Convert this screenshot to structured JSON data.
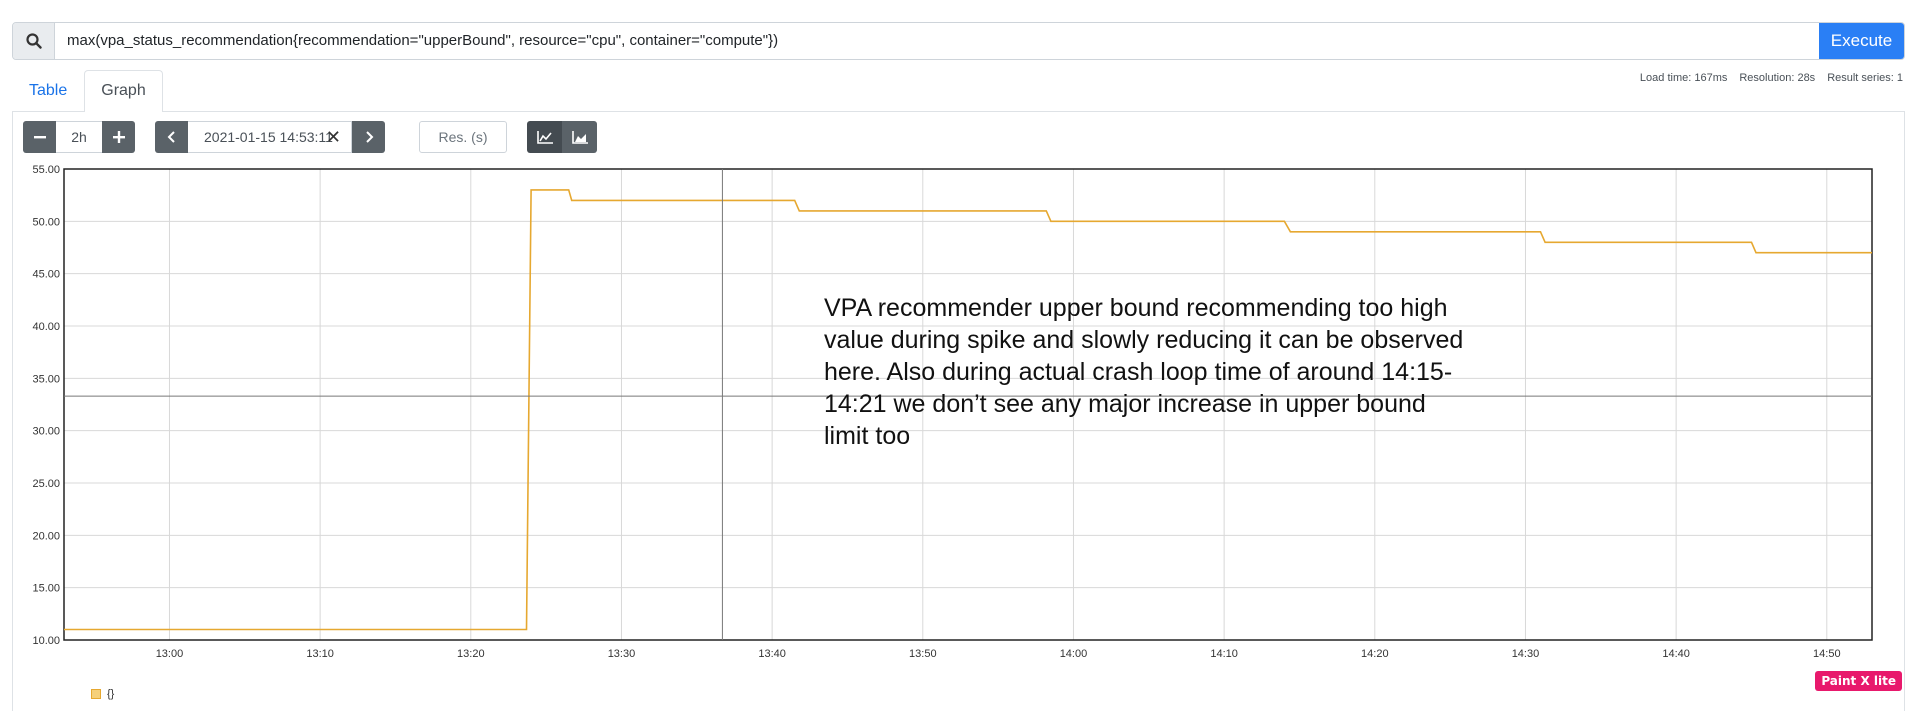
{
  "query": {
    "expression": "max(vpa_status_recommendation{recommendation=\"upperBound\", resource=\"cpu\", container=\"compute\"})",
    "execute_label": "Execute",
    "search_icon": "search-icon"
  },
  "tabs": [
    {
      "label": "Table",
      "active": false
    },
    {
      "label": "Graph",
      "active": true
    }
  ],
  "stats": {
    "load_time": "Load time: 167ms",
    "resolution": "Resolution: 28s",
    "result_series": "Result series: 1"
  },
  "controls": {
    "range": "2h",
    "end_time": "2021-01-15 14:53:11",
    "resolution_placeholder": "Res. (s)",
    "decrease_icon": "minus-icon",
    "increase_icon": "plus-icon",
    "back_icon": "chevron-left-icon",
    "forward_icon": "chevron-right-icon",
    "clear_icon": "close-icon",
    "line_chart_icon": "line-chart-icon",
    "stacked_chart_icon": "area-chart-icon"
  },
  "annotation": "VPA recommender upper bound recommending too high value during spike and slowly reducing it can be observed here. Also during actual crash loop time of around 14:15-14:21 we don’t see any major increase in upper bound limit too",
  "legend": {
    "series_label": "{}",
    "color": "#e6a830"
  },
  "watermark": "Paint X lite",
  "chart_data": {
    "type": "line",
    "title": "",
    "xlabel": "",
    "ylabel": "",
    "x_range": [
      "12:53",
      "14:53"
    ],
    "ylim": [
      10,
      55
    ],
    "y_ticks": [
      "10.00",
      "15.00",
      "20.00",
      "25.00",
      "30.00",
      "35.00",
      "40.00",
      "45.00",
      "50.00",
      "55.00"
    ],
    "x_ticks": [
      "13:00",
      "13:10",
      "13:20",
      "13:30",
      "13:40",
      "13:50",
      "14:00",
      "14:10",
      "14:20",
      "14:30",
      "14:40",
      "14:50"
    ],
    "grid": true,
    "line_color": "#e6a830",
    "series": [
      {
        "points": [
          [
            "12:53",
            11
          ],
          [
            "13:23.7",
            11
          ],
          [
            "13:24",
            53
          ],
          [
            "13:26.5",
            53
          ],
          [
            "13:26.7",
            52
          ],
          [
            "13:41.5",
            52
          ],
          [
            "13:41.8",
            51
          ],
          [
            "13:58.2",
            51
          ],
          [
            "13:58.5",
            50
          ],
          [
            "14:14",
            50
          ],
          [
            "14:14.4",
            49
          ],
          [
            "14:31",
            49
          ],
          [
            "14:31.3",
            48
          ],
          [
            "14:45",
            48
          ],
          [
            "14:45.3",
            47
          ],
          [
            "14:53",
            47
          ]
        ]
      }
    ]
  }
}
